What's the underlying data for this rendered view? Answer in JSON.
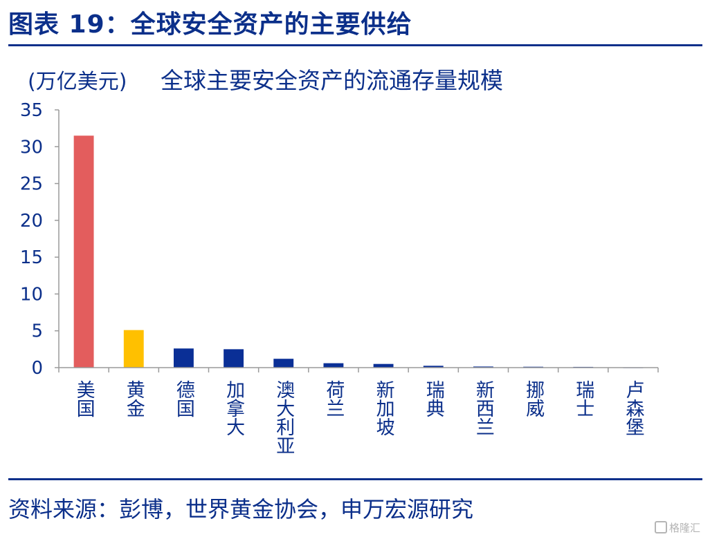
{
  "figure_title": "图表 19：全球安全资产的主要供给",
  "source_text": "资料来源：彭博，世界黄金协会，申万宏源研究",
  "watermark": "格隆汇",
  "chart_data": {
    "type": "bar",
    "title": "全球主要安全资产的流通存量规模",
    "ylabel": "(万亿美元)",
    "xlabel": "",
    "ylim": [
      0,
      35
    ],
    "yticks": [
      "0",
      "5",
      "10",
      "15",
      "20",
      "25",
      "30",
      "35"
    ],
    "grid": false,
    "categories": [
      "美国",
      "黄金",
      "德国",
      "加拿大",
      "澳大利亚",
      "荷兰",
      "新加坡",
      "瑞典",
      "新西兰",
      "挪威",
      "瑞士",
      "卢森堡"
    ],
    "values": [
      31.5,
      5.1,
      2.6,
      2.5,
      1.2,
      0.6,
      0.5,
      0.25,
      0.15,
      0.12,
      0.1,
      0.03
    ],
    "colors": [
      "#e35d5d",
      "#ffc000",
      "#0a2f96",
      "#0a2f96",
      "#0a2f96",
      "#0a2f96",
      "#0a2f96",
      "#0a2f96",
      "#0a2f96",
      "#0a2f96",
      "#0a2f96",
      "#0a2f96"
    ]
  }
}
